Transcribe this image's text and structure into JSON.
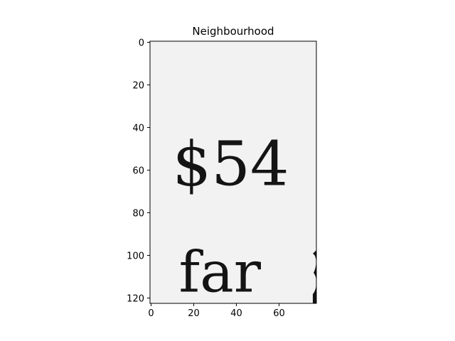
{
  "chart_data": {
    "type": "image",
    "title": "Neighbourhood",
    "image_text": [
      {
        "text": "$54",
        "x": 10,
        "y": 67
      },
      {
        "text": "far",
        "x": 13,
        "y": 117
      }
    ],
    "xlim": [
      -0.5,
      77.5
    ],
    "ylim": [
      122.5,
      -0.5
    ],
    "xticks": [
      0,
      20,
      40,
      60
    ],
    "yticks": [
      0,
      20,
      40,
      60,
      80,
      100,
      120
    ],
    "xtick_labels": [
      "0",
      "20",
      "40",
      "60"
    ],
    "ytick_labels": [
      "0",
      "20",
      "40",
      "60",
      "80",
      "100",
      "120"
    ],
    "grid": false,
    "colors": {
      "background": "#efefef",
      "ink": "#141414",
      "axes": "#000000"
    }
  }
}
